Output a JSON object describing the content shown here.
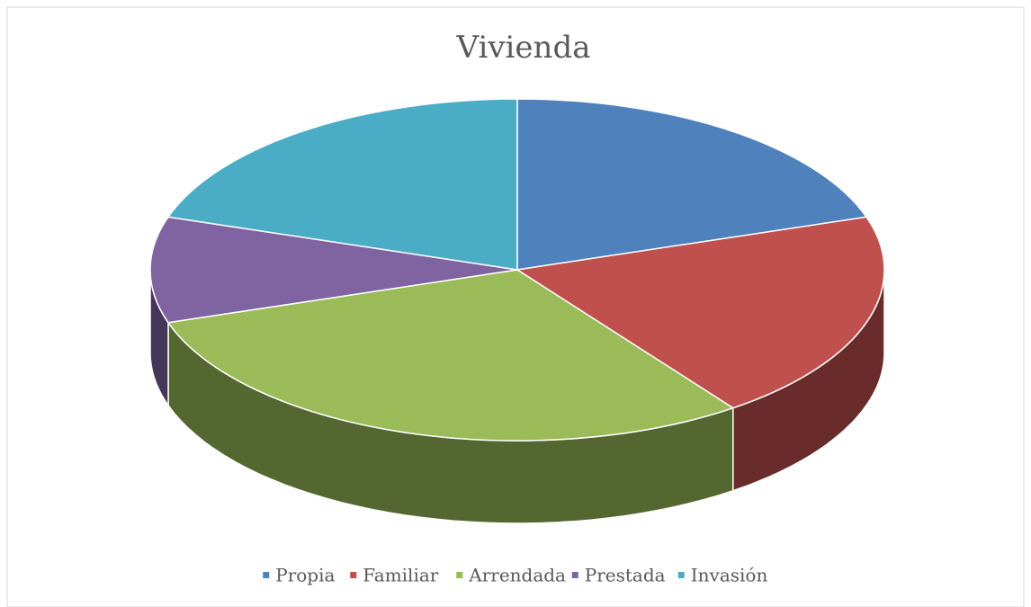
{
  "chart_data": {
    "type": "pie",
    "title": "Vivienda",
    "categories": [
      "Propia",
      "Familiar",
      "Arrendada",
      "Prestada",
      "Invasión"
    ],
    "values": [
      20,
      20,
      30,
      10,
      20
    ],
    "colors": [
      "#4f81bd",
      "#c0504d",
      "#9bbb59",
      "#8064a2",
      "#4bacc6"
    ],
    "legend": "bottom"
  }
}
